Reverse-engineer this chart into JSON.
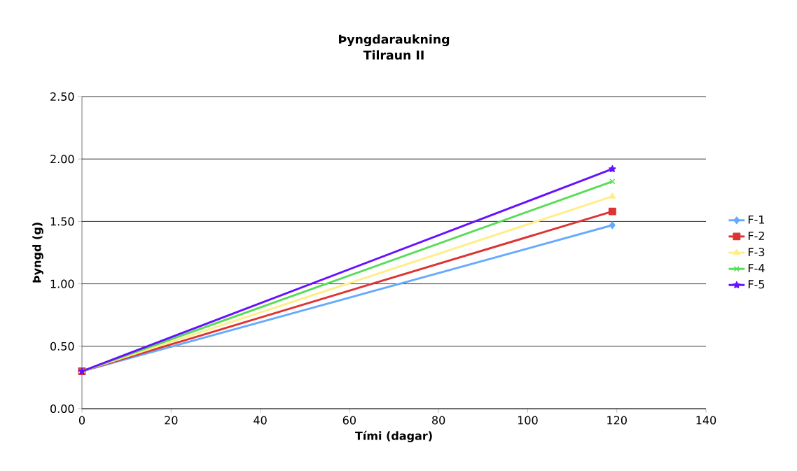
{
  "chart_data": {
    "type": "line",
    "title": "Þyngdaraukning",
    "subtitle": "Tilraun II",
    "xlabel": "Tími (dagar)",
    "ylabel": "Þyngd (g)",
    "x": [
      0,
      119
    ],
    "xlim": [
      0,
      140
    ],
    "xticks": [
      0,
      20,
      40,
      60,
      80,
      100,
      120,
      140
    ],
    "ylim": [
      0,
      2.5
    ],
    "yticks": [
      {
        "value": 0,
        "label": "0.00"
      },
      {
        "value": 0.5,
        "label": "0.50"
      },
      {
        "value": 1,
        "label": "1.00"
      },
      {
        "value": 1.5,
        "label": "1.50"
      },
      {
        "value": 2,
        "label": "2.00"
      },
      {
        "value": 2.5,
        "label": "2.50"
      }
    ],
    "grid": "y",
    "legend": "right",
    "series": [
      {
        "name": "F-1",
        "color": "#66aaff",
        "marker": "diamond",
        "values": [
          0.3,
          1.47
        ]
      },
      {
        "name": "F-2",
        "color": "#dd3333",
        "marker": "square",
        "values": [
          0.3,
          1.58
        ]
      },
      {
        "name": "F-3",
        "color": "#ffee88",
        "marker": "triangle",
        "values": [
          0.3,
          1.7
        ]
      },
      {
        "name": "F-4",
        "color": "#55dd55",
        "marker": "cross",
        "values": [
          0.3,
          1.82
        ]
      },
      {
        "name": "F-5",
        "color": "#6611ff",
        "marker": "star",
        "values": [
          0.3,
          1.92
        ]
      }
    ]
  }
}
